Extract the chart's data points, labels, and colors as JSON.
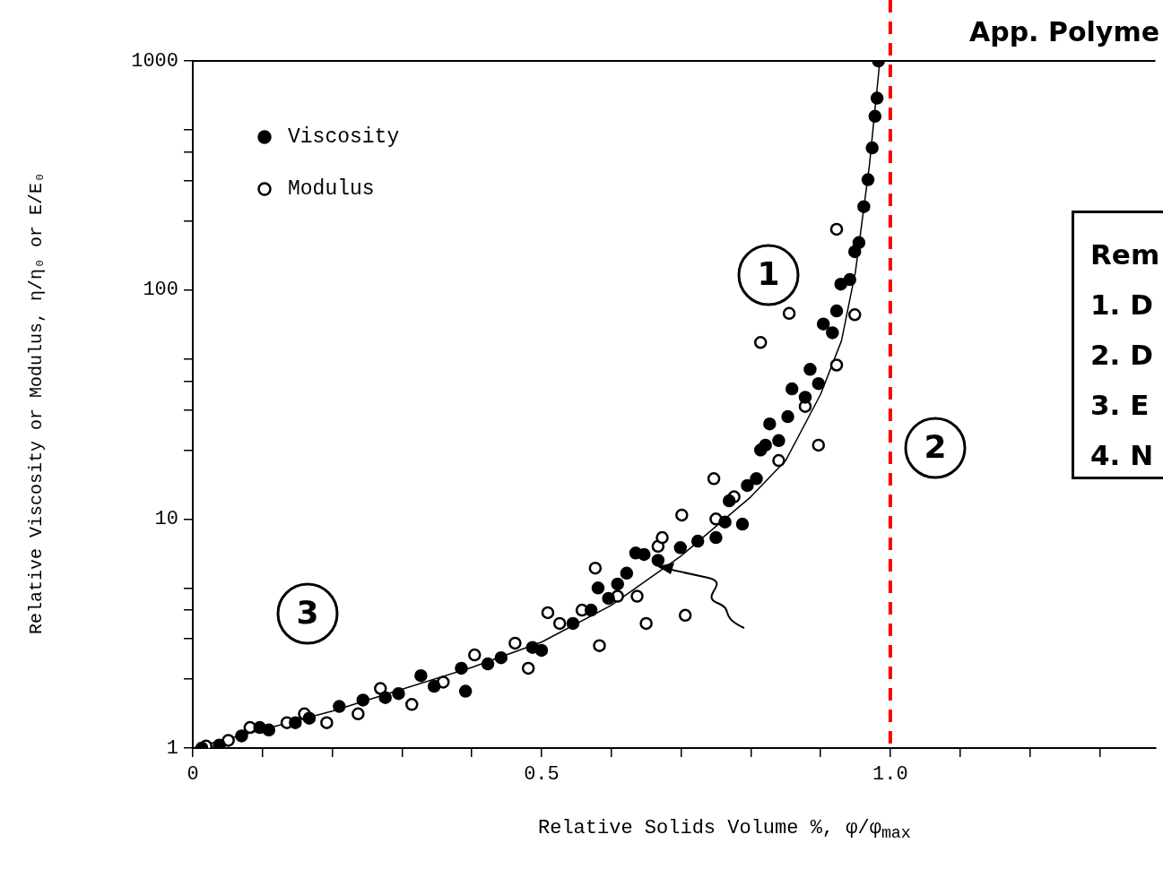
{
  "chart_data": {
    "type": "scatter",
    "title": "App. Polyme",
    "xlabel": "Relative Solids Volume %, φ/φ$_{max}$",
    "ylabel": "Relative Viscosity or Modulus, η/η₀ or E/E₀",
    "log": "y",
    "legend": "top left",
    "marker": "circle",
    "grid": false,
    "xlim": [
      0,
      1.38
    ],
    "xticks": [
      0,
      {
        "value": 0.1,
        "label": null
      },
      {
        "value": 0.2,
        "label": null
      },
      {
        "value": 0.3,
        "label": null
      },
      {
        "value": 0.4,
        "label": null
      },
      0.5,
      {
        "value": 0.6,
        "label": null
      },
      {
        "value": 0.7,
        "label": null
      },
      {
        "value": 0.8,
        "label": null
      },
      {
        "value": 0.9,
        "label": null
      },
      {
        "value": 1,
        "label": "1.0"
      },
      {
        "value": 1.1,
        "label": null
      },
      {
        "value": 1.2,
        "label": null
      },
      {
        "value": 1.3,
        "label": null
      }
    ],
    "ylim": [
      1,
      1000
    ],
    "yticks": [
      1,
      {
        "value": 2,
        "label": null
      },
      {
        "value": 3,
        "label": null
      },
      {
        "value": 4,
        "label": null
      },
      {
        "value": 5,
        "label": null
      },
      10,
      {
        "value": 20,
        "label": null
      },
      {
        "value": 30,
        "label": null
      },
      {
        "value": 40,
        "label": null
      },
      {
        "value": 50,
        "label": null
      },
      100,
      {
        "value": 200,
        "label": null
      },
      {
        "value": 300,
        "label": null
      },
      {
        "value": 400,
        "label": null
      },
      {
        "value": 500,
        "label": null
      },
      1000
    ],
    "ref_lines": [
      {
        "axis": "x",
        "value": 1,
        "color": "#ff0000",
        "line_style": "dashed"
      }
    ],
    "annotations": [
      "1",
      "2",
      "3",
      "Rem",
      "1. D",
      "2. D",
      "3. E",
      "4. N"
    ],
    "series": [
      {
        "name": "Viscosity",
        "color": "#000000",
        "x": [
          0.013,
          0.038,
          0.07,
          0.096,
          0.109,
          0.147,
          0.167,
          0.21,
          0.244,
          0.276,
          0.295,
          0.327,
          0.346,
          0.385,
          0.391,
          0.423,
          0.442,
          0.487,
          0.5,
          0.545,
          0.571,
          0.581,
          0.596,
          0.609,
          0.622,
          0.635,
          0.647,
          0.667,
          0.699,
          0.724,
          0.75,
          0.763,
          0.769,
          0.788,
          0.795,
          0.808,
          0.814,
          0.821,
          0.827,
          0.84,
          0.853,
          0.859,
          0.878,
          0.885,
          0.897,
          0.904,
          0.917,
          0.923,
          0.929,
          0.942,
          0.949,
          0.955,
          0.962,
          0.968,
          0.974,
          0.978,
          0.981,
          0.983
        ],
        "values": [
          1.0,
          1.03,
          1.13,
          1.23,
          1.2,
          1.29,
          1.35,
          1.52,
          1.62,
          1.66,
          1.73,
          2.07,
          1.86,
          2.23,
          1.77,
          2.33,
          2.48,
          2.75,
          2.67,
          3.5,
          4.0,
          5.0,
          4.5,
          5.2,
          5.8,
          7.1,
          7.0,
          6.6,
          7.5,
          8.0,
          8.3,
          9.7,
          12,
          9.5,
          14,
          15,
          20,
          21,
          26,
          22,
          28,
          37,
          34,
          45,
          39,
          71,
          65,
          81,
          106,
          111,
          147,
          161,
          231,
          303,
          417,
          573,
          688,
          1000
        ]
      },
      {
        "name": "Modulus",
        "color": "#000000",
        "x": [
          0.019,
          0.051,
          0.082,
          0.135,
          0.16,
          0.192,
          0.237,
          0.269,
          0.314,
          0.359,
          0.404,
          0.462,
          0.481,
          0.509,
          0.526,
          0.558,
          0.577,
          0.583,
          0.609,
          0.637,
          0.65,
          0.667,
          0.673,
          0.701,
          0.706,
          0.747,
          0.75,
          0.776,
          0.814,
          0.855,
          0.84,
          0.878,
          0.897,
          0.923,
          0.923,
          0.949
        ],
        "values": [
          1.02,
          1.08,
          1.23,
          1.29,
          1.41,
          1.29,
          1.41,
          1.82,
          1.55,
          1.94,
          2.55,
          2.87,
          2.23,
          3.9,
          3.5,
          4.0,
          6.1,
          2.8,
          4.6,
          4.6,
          3.5,
          7.6,
          8.3,
          10.4,
          3.8,
          15,
          10,
          12.5,
          59,
          79,
          18,
          31,
          21,
          47,
          184,
          78
        ]
      },
      {
        "type": "line",
        "color": "#000000",
        "marker": "none",
        "x": [
          0,
          0.2,
          0.4,
          0.5,
          0.6,
          0.7,
          0.8,
          0.85,
          0.9,
          0.93,
          0.95,
          0.97,
          0.985
        ],
        "values": [
          1,
          1.45,
          2.25,
          2.9,
          4.2,
          6.9,
          12.5,
          18,
          35,
          60,
          120,
          350,
          1000
        ]
      }
    ]
  }
}
